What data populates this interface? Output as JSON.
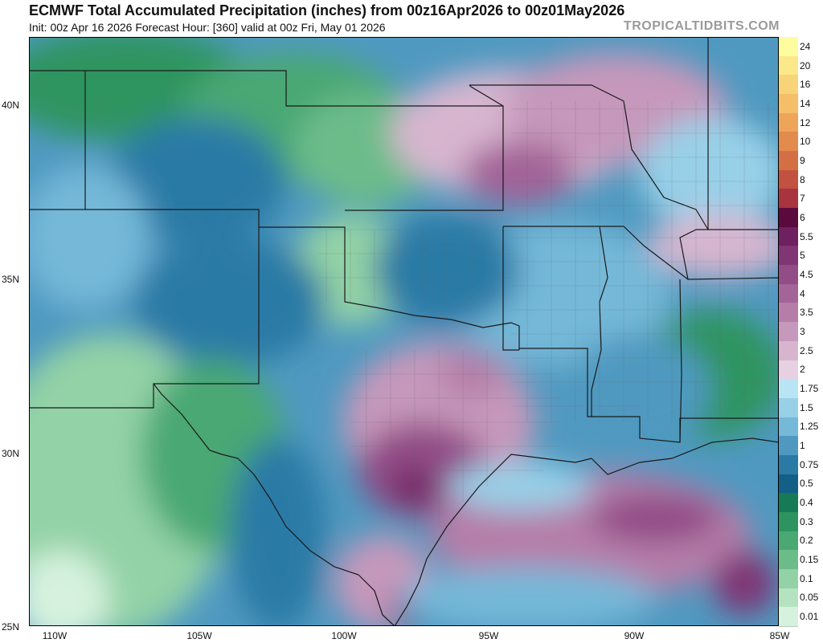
{
  "header": {
    "title": "ECMWF Total Accumulated Precipitation (inches) from 00z16Apr2026 to 00z01May2026",
    "subtitle": "Init: 00z Apr 16 2026   Forecast Hour: [360]   valid at 00z Fri, May 01 2026",
    "brand": "TROPICALTIDBITS.COM"
  },
  "axes": {
    "lat_labels": [
      "40N",
      "35N",
      "30N",
      "25N"
    ],
    "lon_labels": [
      "110W",
      "105W",
      "100W",
      "95W",
      "90W",
      "85W"
    ]
  },
  "legend": {
    "units": "inches",
    "levels": [
      {
        "label": "24",
        "color": "#fdfda0"
      },
      {
        "label": "20",
        "color": "#fbe88a"
      },
      {
        "label": "16",
        "color": "#f8d478"
      },
      {
        "label": "14",
        "color": "#f4bf68"
      },
      {
        "label": "12",
        "color": "#eea55a"
      },
      {
        "label": "10",
        "color": "#e38a4d"
      },
      {
        "label": "9",
        "color": "#d46e45"
      },
      {
        "label": "8",
        "color": "#c2523f"
      },
      {
        "label": "7",
        "color": "#a8343f"
      },
      {
        "label": "6",
        "color": "#5a0a3c"
      },
      {
        "label": "5.5",
        "color": "#6e2060"
      },
      {
        "label": "5",
        "color": "#803574"
      },
      {
        "label": "4.5",
        "color": "#924c86"
      },
      {
        "label": "4",
        "color": "#a36498"
      },
      {
        "label": "3.5",
        "color": "#b57ea9"
      },
      {
        "label": "3",
        "color": "#c698bb"
      },
      {
        "label": "2.5",
        "color": "#d7b5cf"
      },
      {
        "label": "2",
        "color": "#e7d0e2"
      },
      {
        "label": "1.75",
        "color": "#b9e4f3"
      },
      {
        "label": "1.5",
        "color": "#98d0e8"
      },
      {
        "label": "1.25",
        "color": "#75b8d8"
      },
      {
        "label": "1",
        "color": "#4f99c0"
      },
      {
        "label": "0.75",
        "color": "#2b7aa6"
      },
      {
        "label": "0.5",
        "color": "#135f86"
      },
      {
        "label": "0.4",
        "color": "#157a55"
      },
      {
        "label": "0.3",
        "color": "#2d9460"
      },
      {
        "label": "0.2",
        "color": "#4aa873"
      },
      {
        "label": "0.15",
        "color": "#6cbc8a"
      },
      {
        "label": "0.1",
        "color": "#93d2a6"
      },
      {
        "label": "0.05",
        "color": "#b5e3c2"
      },
      {
        "label": "0.01",
        "color": "#d6f2de"
      }
    ]
  }
}
